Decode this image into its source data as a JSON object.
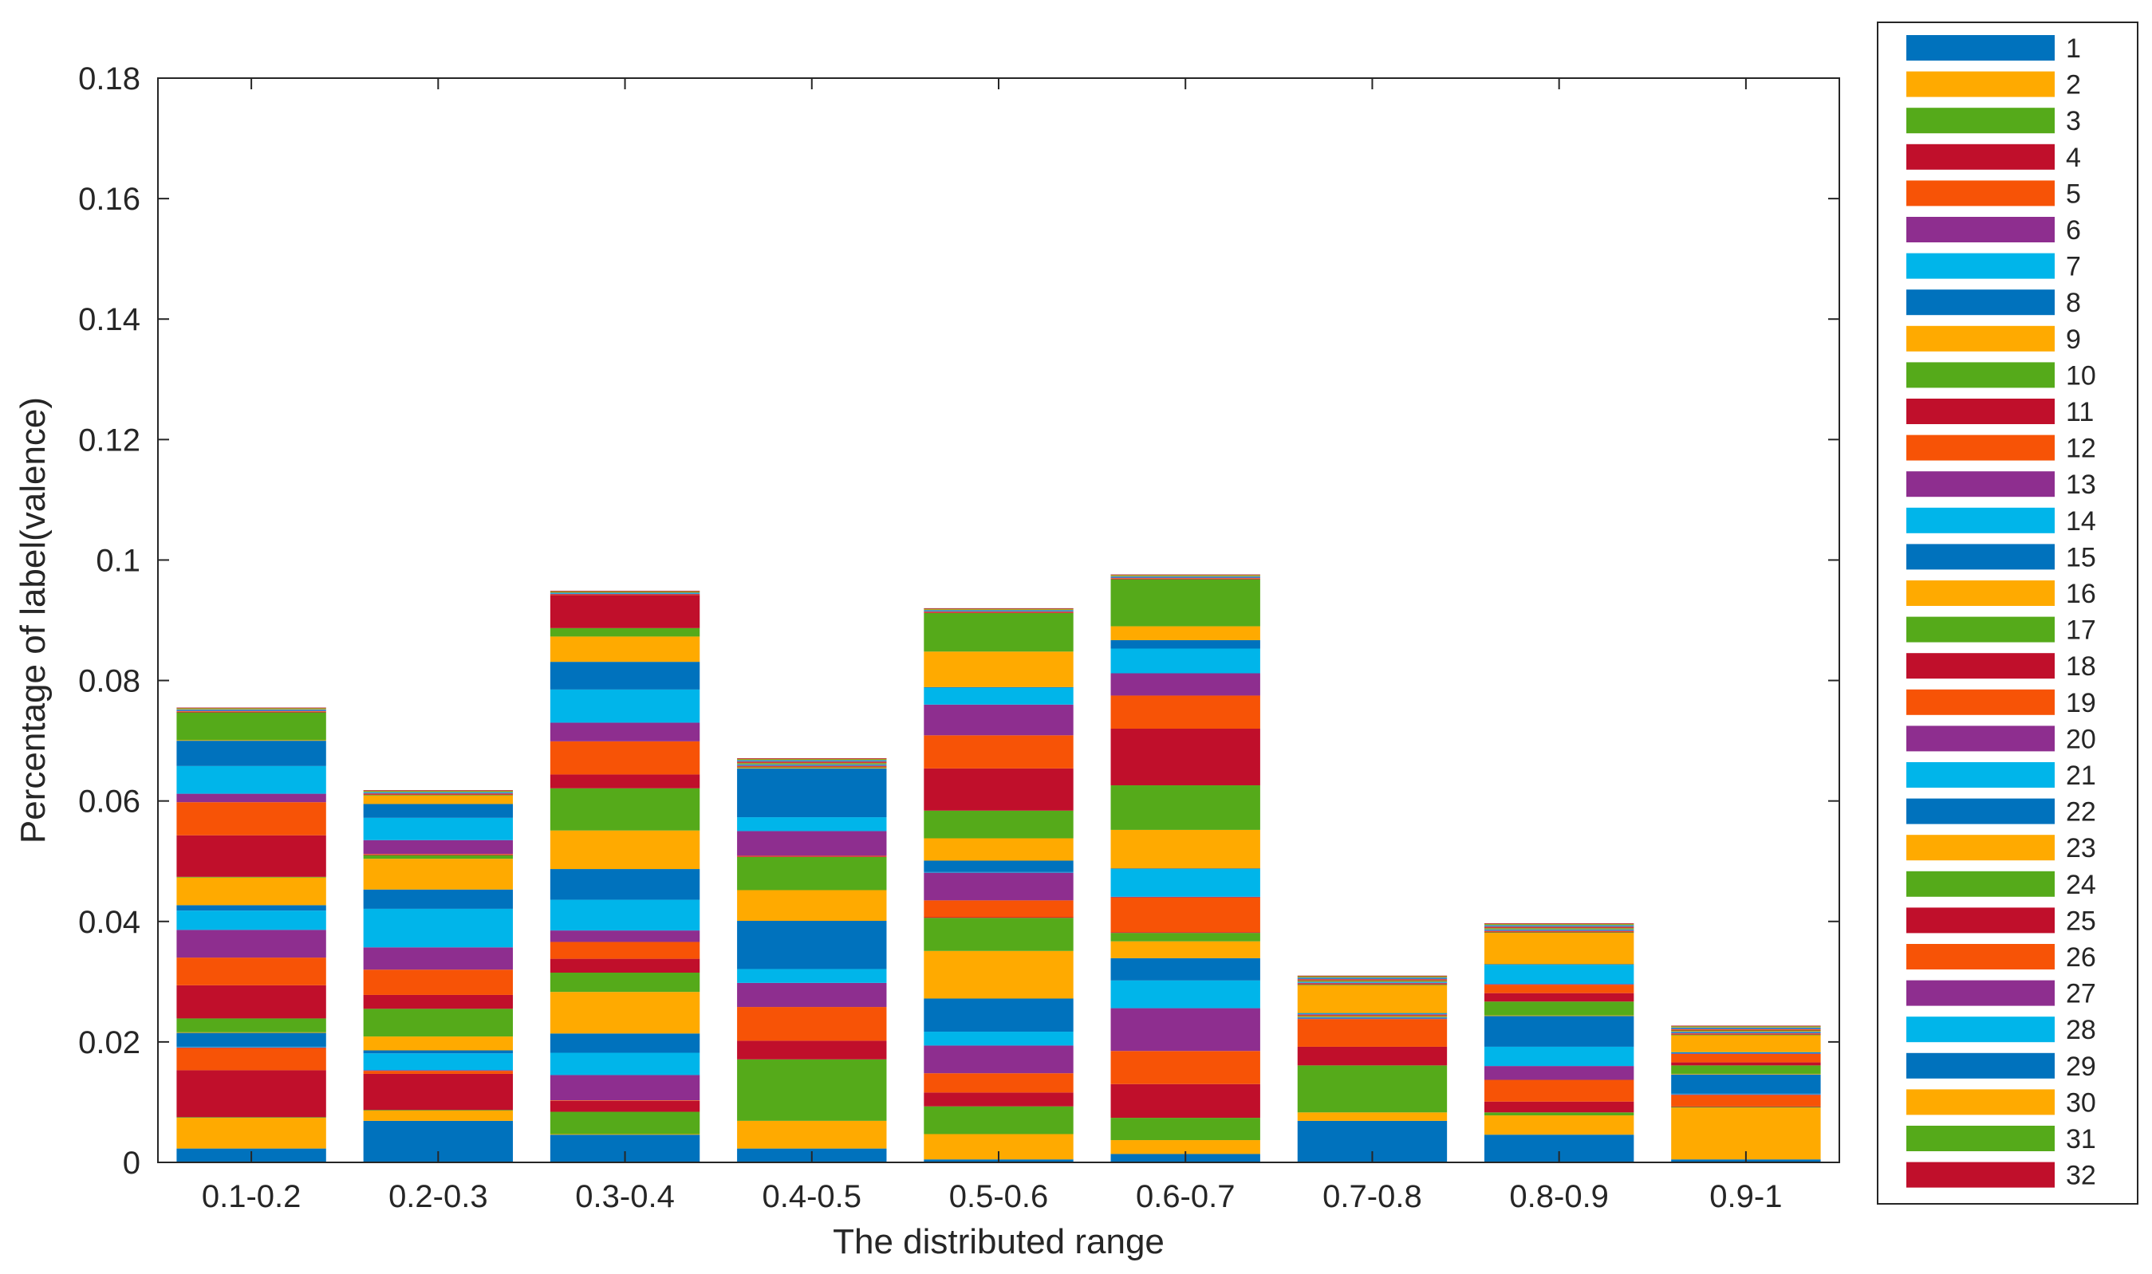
{
  "chart_data": {
    "type": "bar",
    "stacked": true,
    "title": "",
    "xlabel": "The distributed range",
    "ylabel": "Percentage of label(valence)",
    "ylim": [
      0,
      0.18
    ],
    "yticks": [
      "0",
      "0.02",
      "0.04",
      "0.06",
      "0.08",
      "0.1",
      "0.12",
      "0.14",
      "0.16",
      "0.18"
    ],
    "categories": [
      "0.1-0.2",
      "0.2-0.3",
      "0.3-0.4",
      "0.4-0.5",
      "0.5-0.6",
      "0.6-0.7",
      "0.7-0.8",
      "0.8-0.9",
      "0.9-1"
    ],
    "grid": false,
    "legend_position": "right",
    "legend_labels": [
      "1",
      "2",
      "3",
      "4",
      "5",
      "6",
      "7",
      "8",
      "9",
      "10",
      "11",
      "12",
      "13",
      "14",
      "15",
      "16",
      "17",
      "18",
      "19",
      "20",
      "21",
      "22",
      "23",
      "24",
      "25",
      "26",
      "27",
      "28",
      "29",
      "30",
      "31",
      "32"
    ],
    "palette": [
      "#0072bd",
      "#ffaa00",
      "#55aa1a",
      "#c00f2b",
      "#f75306",
      "#8e2e8f",
      "#00b5ea"
    ],
    "series": [
      {
        "name": "1",
        "values": [
          0.0023,
          0.0069,
          0.0046,
          0.0023,
          0.0005,
          0.0014,
          0.0069,
          0.0046,
          0.0005
        ]
      },
      {
        "name": "2",
        "values": [
          0.0051,
          0.0017,
          0.0001,
          0.0046,
          0.0042,
          0.0023,
          0.0014,
          0.0032,
          0.0086
        ]
      },
      {
        "name": "3",
        "values": [
          0.0001,
          0.0001,
          0.0037,
          0.0102,
          0.0046,
          0.0037,
          0.0078,
          0.0005,
          0.0001
        ]
      },
      {
        "name": "4",
        "values": [
          0.0078,
          0.006,
          0.0018,
          0.0031,
          0.0023,
          0.0056,
          0.0031,
          0.0018,
          0.0001
        ]
      },
      {
        "name": "5",
        "values": [
          0.0037,
          0.0005,
          0.0001,
          0.0056,
          0.0032,
          0.0055,
          0.0046,
          0.0036,
          0.0019
        ]
      },
      {
        "name": "6",
        "values": [
          0.0001,
          0.0001,
          0.0042,
          0.004,
          0.0046,
          0.0071,
          0.0001,
          0.0023,
          0.0001
        ]
      },
      {
        "name": "7",
        "values": [
          0.0001,
          0.0028,
          0.0037,
          0.0023,
          0.0023,
          0.0046,
          0.0001,
          0.0032,
          0.0001
        ]
      },
      {
        "name": "8",
        "values": [
          0.0023,
          0.0005,
          0.0032,
          0.008,
          0.0055,
          0.0037,
          0.0001,
          0.0051,
          0.0032
        ]
      },
      {
        "name": "9",
        "values": [
          0.0001,
          0.0023,
          0.0069,
          0.0051,
          0.0079,
          0.0028,
          0.0001,
          0.0001,
          0.0001
        ]
      },
      {
        "name": "10",
        "values": [
          0.0023,
          0.0046,
          0.0032,
          0.0055,
          0.0055,
          0.0014,
          0.0001,
          0.0023,
          0.0014
        ]
      },
      {
        "name": "11",
        "values": [
          0.0055,
          0.0023,
          0.0023,
          0.0001,
          0.0001,
          0.0001,
          0.0001,
          0.0014,
          0.0005
        ]
      },
      {
        "name": "12",
        "values": [
          0.0046,
          0.0042,
          0.0028,
          0.0001,
          0.0028,
          0.0058,
          0.0001,
          0.0014,
          0.0014
        ]
      },
      {
        "name": "13",
        "values": [
          0.0046,
          0.0037,
          0.0019,
          0.0041,
          0.0046,
          0.0001,
          0.0001,
          0.0001,
          0.0001
        ]
      },
      {
        "name": "14",
        "values": [
          0.0032,
          0.0064,
          0.0051,
          0.0023,
          0.0001,
          0.0046,
          0.0001,
          0.0032,
          0.0001
        ]
      },
      {
        "name": "15",
        "values": [
          0.0009,
          0.0032,
          0.0051,
          0.0081,
          0.0019,
          0.0001,
          0.0001,
          0.0001,
          0.0001
        ]
      },
      {
        "name": "16",
        "values": [
          0.0046,
          0.0051,
          0.0064,
          0.0001,
          0.0037,
          0.0064,
          0.0046,
          0.0052,
          0.0028
        ]
      },
      {
        "name": "17",
        "values": [
          0.0001,
          0.0006,
          0.007,
          0.0001,
          0.0046,
          0.0074,
          0.0001,
          0.0001,
          0.0001
        ]
      },
      {
        "name": "18",
        "values": [
          0.0069,
          0.0001,
          0.0023,
          0.0001,
          0.007,
          0.0094,
          0.0001,
          0.0001,
          0.0001
        ]
      },
      {
        "name": "19",
        "values": [
          0.0055,
          0.0001,
          0.0055,
          0.0001,
          0.0055,
          0.0055,
          0.0001,
          0.0001,
          0.0001
        ]
      },
      {
        "name": "20",
        "values": [
          0.0014,
          0.0023,
          0.0031,
          0.0001,
          0.0051,
          0.0037,
          0.0001,
          0.0001,
          0.0001
        ]
      },
      {
        "name": "21",
        "values": [
          0.0046,
          0.0037,
          0.0055,
          0.0001,
          0.0028,
          0.0041,
          0.0001,
          0.0001,
          0.0001
        ]
      },
      {
        "name": "22",
        "values": [
          0.0042,
          0.0023,
          0.0046,
          0.0001,
          0.0001,
          0.0014,
          0.0001,
          0.0001,
          0.0001
        ]
      },
      {
        "name": "23",
        "values": [
          0.0001,
          0.0014,
          0.0042,
          0.0001,
          0.0059,
          0.0023,
          0.0001,
          0.0001,
          0.0001
        ]
      },
      {
        "name": "24",
        "values": [
          0.0046,
          0.0001,
          0.0014,
          0.0001,
          0.0064,
          0.0078,
          0.0001,
          0.0001,
          0.0001
        ]
      },
      {
        "name": "25",
        "values": [
          0.0001,
          0.0001,
          0.0055,
          0.0001,
          0.0001,
          0.0001,
          0.0001,
          0.0001,
          0.0001
        ]
      },
      {
        "name": "26",
        "values": [
          0.0001,
          0.0001,
          0.0001,
          0.0001,
          0.0001,
          0.0001,
          0.0001,
          0.0001,
          0.0001
        ]
      },
      {
        "name": "27",
        "values": [
          0.0001,
          0.0001,
          0.0001,
          0.0001,
          0.0001,
          0.0001,
          0.0001,
          0.0001,
          0.0001
        ]
      },
      {
        "name": "28",
        "values": [
          0.0001,
          0.0001,
          0.0001,
          0.0001,
          0.0001,
          0.0001,
          0.0001,
          0.0001,
          0.0001
        ]
      },
      {
        "name": "29",
        "values": [
          0.0001,
          0.0001,
          0.0001,
          0.0001,
          0.0001,
          0.0001,
          0.0001,
          0.0001,
          0.0001
        ]
      },
      {
        "name": "30",
        "values": [
          0.0001,
          0.0001,
          0.0001,
          0.0001,
          0.0001,
          0.0001,
          0.0001,
          0.0001,
          0.0001
        ]
      },
      {
        "name": "31",
        "values": [
          0.0001,
          0.0001,
          0.0001,
          0.0001,
          0.0001,
          0.0001,
          0.0001,
          0.0001,
          0.0001
        ]
      },
      {
        "name": "32",
        "values": [
          0.0001,
          0.0001,
          0.0001,
          0.0001,
          0.0001,
          0.0001,
          0.0001,
          0.0001,
          0.0001
        ]
      }
    ]
  }
}
